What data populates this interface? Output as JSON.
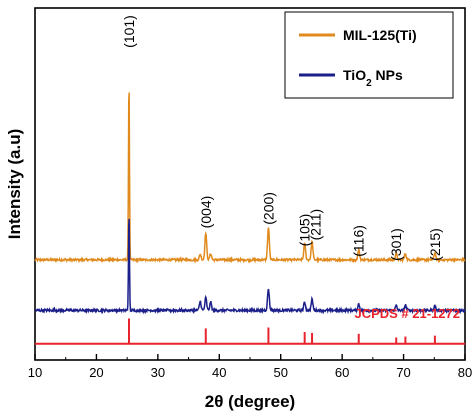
{
  "chart_data": {
    "type": "line",
    "xlabel": "2θ (degree)",
    "ylabel": "Intensity (a.u)",
    "xlim": [
      10,
      80
    ],
    "xticks": [
      10,
      20,
      30,
      40,
      50,
      60,
      70,
      80
    ],
    "y_ticks_shown": false,
    "grid": false,
    "legend_position": "top-right",
    "series": [
      {
        "name": "MIL-125(Ti)",
        "color": "#E08A1E",
        "baseline": 0.555,
        "noise": 0.012,
        "peaks": [
          {
            "x": 25.3,
            "h": 1.0
          },
          {
            "x": 36.9,
            "h": 0.03
          },
          {
            "x": 37.8,
            "h": 0.15
          },
          {
            "x": 38.6,
            "h": 0.035
          },
          {
            "x": 48.0,
            "h": 0.18
          },
          {
            "x": 53.9,
            "h": 0.09
          },
          {
            "x": 55.1,
            "h": 0.1
          },
          {
            "x": 62.7,
            "h": 0.055
          },
          {
            "x": 68.8,
            "h": 0.035
          },
          {
            "x": 70.3,
            "h": 0.035
          },
          {
            "x": 75.1,
            "h": 0.04
          }
        ]
      },
      {
        "name": "TiO2 NPs",
        "color": "#1B1F8A",
        "baseline": 0.275,
        "noise": 0.014,
        "peaks": [
          {
            "x": 25.3,
            "h": 0.54
          },
          {
            "x": 36.9,
            "h": 0.05
          },
          {
            "x": 37.8,
            "h": 0.07
          },
          {
            "x": 38.6,
            "h": 0.045
          },
          {
            "x": 48.0,
            "h": 0.12
          },
          {
            "x": 53.9,
            "h": 0.045
          },
          {
            "x": 55.1,
            "h": 0.06
          },
          {
            "x": 62.7,
            "h": 0.035
          },
          {
            "x": 68.8,
            "h": 0.025
          },
          {
            "x": 70.3,
            "h": 0.03
          },
          {
            "x": 75.1,
            "h": 0.025
          }
        ]
      }
    ],
    "reference": {
      "label": "JCPDS # 21-1272",
      "color": "#E8232B",
      "baseline": 0.09,
      "lines": [
        {
          "x": 25.3,
          "h": 0.14
        },
        {
          "x": 37.8,
          "h": 0.085
        },
        {
          "x": 48.0,
          "h": 0.09
        },
        {
          "x": 53.9,
          "h": 0.065
        },
        {
          "x": 55.1,
          "h": 0.06
        },
        {
          "x": 62.7,
          "h": 0.055
        },
        {
          "x": 68.8,
          "h": 0.035
        },
        {
          "x": 70.3,
          "h": 0.04
        },
        {
          "x": 75.1,
          "h": 0.045
        }
      ]
    },
    "peak_labels": [
      {
        "text": "(101)",
        "x": 25.3,
        "y": 1.82
      },
      {
        "text": "(004)",
        "x": 37.8,
        "y": 0.82
      },
      {
        "text": "(200)",
        "x": 48.0,
        "y": 0.84
      },
      {
        "text": "(105)",
        "x": 53.9,
        "y": 0.72
      },
      {
        "text": "(211)",
        "x": 55.7,
        "y": 0.75
      },
      {
        "text": "(116)",
        "x": 62.7,
        "y": 0.66
      },
      {
        "text": "(301)",
        "x": 68.8,
        "y": 0.64
      },
      {
        "text": "(215)",
        "x": 75.1,
        "y": 0.64
      }
    ]
  }
}
